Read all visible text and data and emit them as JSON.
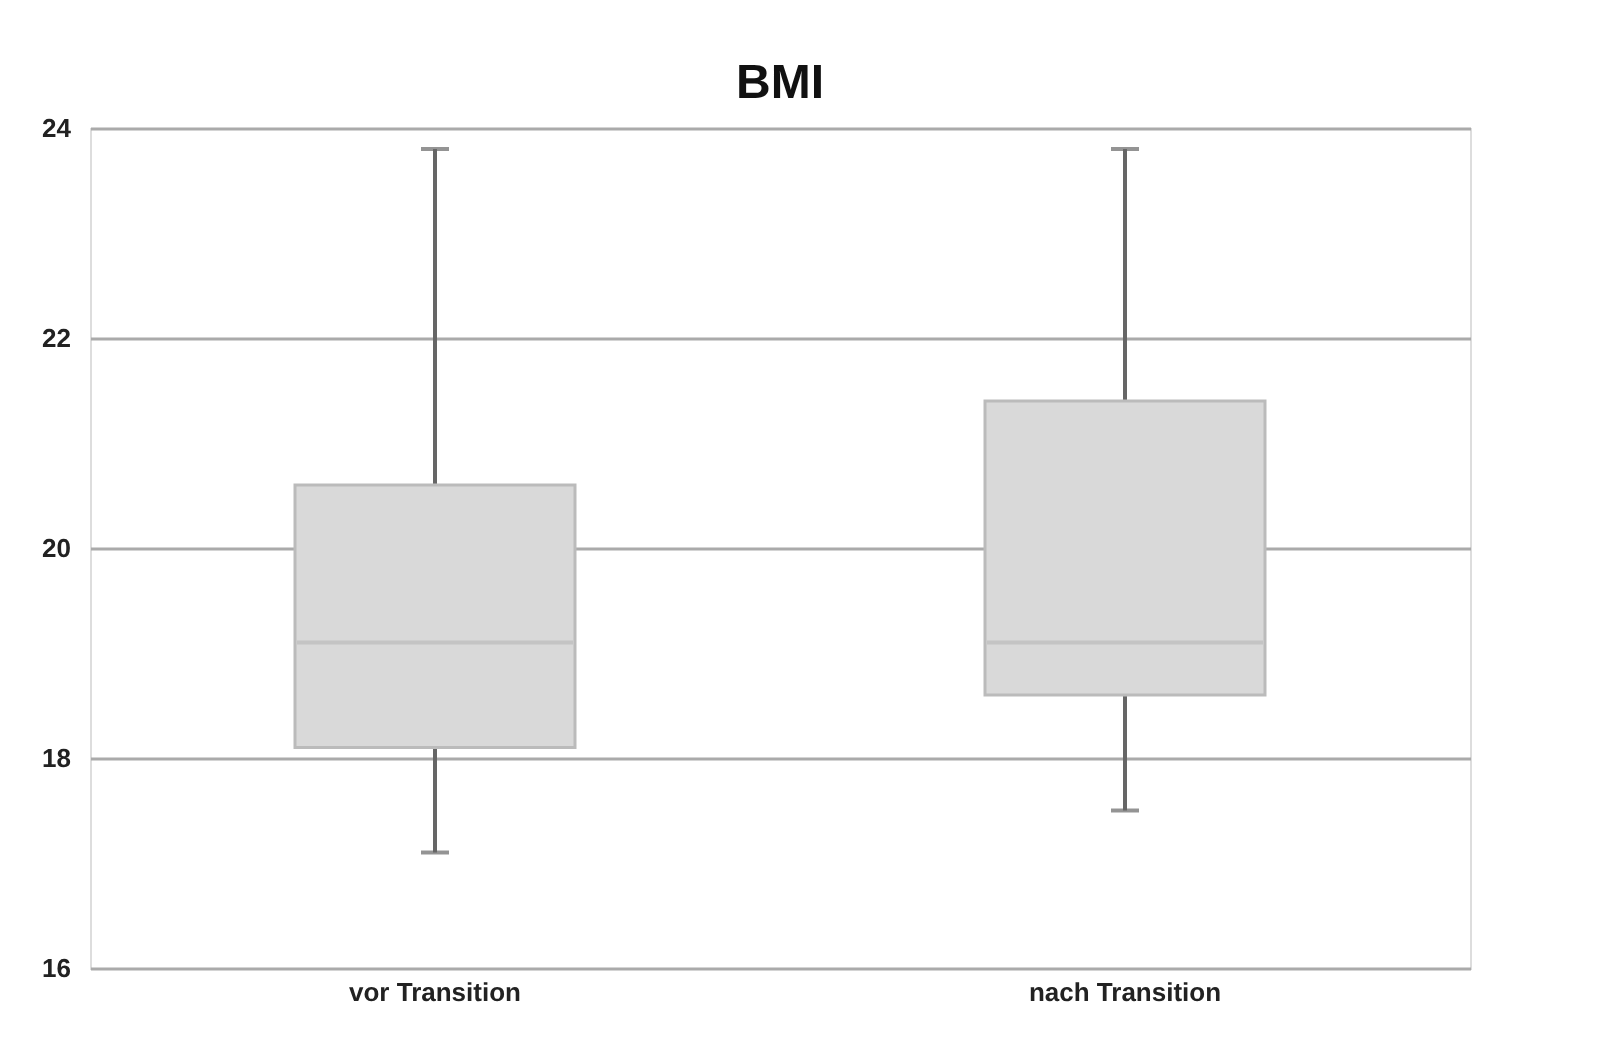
{
  "chart_data": {
    "type": "box",
    "title": "BMI",
    "categories": [
      "vor Transition",
      "nach Transition"
    ],
    "boxes": [
      {
        "low": 17.1,
        "q1": 18.1,
        "median": 19.1,
        "q3": 20.6,
        "high": 23.8
      },
      {
        "low": 17.5,
        "q1": 18.6,
        "median": 19.1,
        "q3": 21.4,
        "high": 23.8
      }
    ],
    "color": "#d9d9d9",
    "ylim": [
      16,
      24
    ],
    "yticks": [
      16,
      18,
      20,
      22,
      24
    ],
    "grid": "y"
  }
}
